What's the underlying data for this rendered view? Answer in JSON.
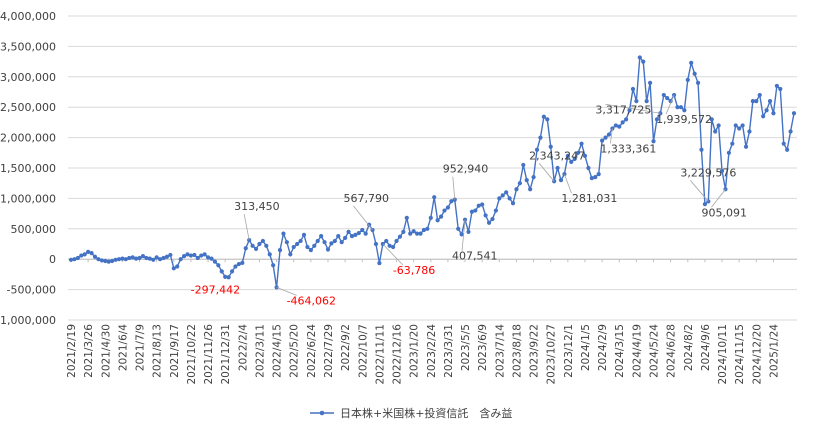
{
  "chart_data": {
    "type": "line",
    "title": "",
    "xlabel": "",
    "ylabel": "",
    "ylim": [
      -1000000,
      4000000
    ],
    "ytick_step": 500000,
    "y_ticks": [
      "4,000,000",
      "3,500,000",
      "3,000,000",
      "2,500,000",
      "2,000,000",
      "1,500,000",
      "1,000,000",
      "500,000",
      "0",
      "-500,000",
      "-1,000,000"
    ],
    "x_ticks": [
      "2021/2/19",
      "2021/3/26",
      "2021/4/30",
      "2021/6/4",
      "2021/7/9",
      "2021/8/13",
      "2021/9/17",
      "2021/10/22",
      "2021/11/26",
      "2021/12/31",
      "2022/2/4",
      "2022/3/11",
      "2022/4/15",
      "2022/5/20",
      "2022/6/24",
      "2022/7/29",
      "2022/9/2",
      "2022/10/7",
      "2022/11/11",
      "2022/12/16",
      "2023/1/20",
      "2023/2/24",
      "2023/3/31",
      "2023/5/5",
      "2023/6/9",
      "2023/7/14",
      "2023/8/18",
      "2023/9/22",
      "2023/10/27",
      "2023/12/1",
      "2024/1/5",
      "2024/2/9",
      "2024/3/15",
      "2024/4/19",
      "2024/5/24",
      "2024/6/28",
      "2024/8/2",
      "2024/9/6",
      "2024/10/11",
      "2024/11/15",
      "2024/12/20",
      "2025/1/24"
    ],
    "grid": true,
    "legend_position": "bottom",
    "series": [
      {
        "name": "日本株+米国株+投資信託　含み益",
        "color": "#4472C4",
        "values": [
          -10000,
          0,
          20000,
          60000,
          80000,
          120000,
          100000,
          40000,
          0,
          -20000,
          -30000,
          -40000,
          -30000,
          -10000,
          0,
          10000,
          0,
          20000,
          30000,
          10000,
          20000,
          50000,
          20000,
          10000,
          -10000,
          30000,
          0,
          20000,
          40000,
          70000,
          -150000,
          -120000,
          0,
          50000,
          80000,
          60000,
          70000,
          20000,
          60000,
          80000,
          30000,
          10000,
          -40000,
          -100000,
          -200000,
          -290000,
          -297442,
          -200000,
          -120000,
          -80000,
          -60000,
          180000,
          313450,
          220000,
          170000,
          250000,
          300000,
          220000,
          80000,
          -100000,
          -464062,
          150000,
          420000,
          280000,
          80000,
          200000,
          250000,
          300000,
          400000,
          200000,
          150000,
          220000,
          300000,
          380000,
          280000,
          160000,
          260000,
          300000,
          380000,
          280000,
          350000,
          450000,
          380000,
          400000,
          430000,
          480000,
          420000,
          567790,
          480000,
          250000,
          -63786,
          250000,
          300000,
          220000,
          200000,
          300000,
          370000,
          450000,
          680000,
          420000,
          460000,
          420000,
          420000,
          480000,
          500000,
          680000,
          1020000,
          640000,
          700000,
          800000,
          850000,
          952940,
          980000,
          500000,
          407541,
          650000,
          450000,
          780000,
          800000,
          880000,
          900000,
          720000,
          600000,
          660000,
          800000,
          1000000,
          1050000,
          1100000,
          1000000,
          920000,
          1150000,
          1250000,
          1550000,
          1300000,
          1150000,
          1350000,
          1800000,
          2000000,
          2343247,
          2300000,
          1850000,
          1281031,
          1500000,
          1300000,
          1400000,
          1700000,
          1600000,
          1650000,
          1750000,
          1900000,
          1700000,
          1500000,
          1333361,
          1350000,
          1400000,
          1950000,
          2000000,
          2050000,
          2150000,
          2200000,
          2180000,
          2250000,
          2300000,
          2450000,
          2800000,
          2600000,
          3317725,
          3250000,
          2600000,
          2900000,
          1939572,
          2300000,
          2400000,
          2700000,
          2650000,
          2600000,
          2700000,
          2500000,
          2500000,
          2450000,
          2950000,
          3229576,
          3050000,
          2900000,
          1800000,
          905091,
          950000,
          2300000,
          2100000,
          2200000,
          1450000,
          1150000,
          1750000,
          1900000,
          2200000,
          2150000,
          2200000,
          1850000,
          2100000,
          2600000,
          2600000,
          2700000,
          2350000,
          2450000,
          2600000,
          2400000,
          2850000,
          2800000,
          1900000,
          1800000,
          2100000,
          2400000
        ]
      }
    ],
    "annotations": [
      {
        "index": 46,
        "label": "-297,442",
        "color": "#FF0000",
        "dx": -38,
        "dy": 16,
        "leader": false
      },
      {
        "index": 52,
        "label": "313,450",
        "color": "#404040",
        "dx": -15,
        "dy": -30,
        "leader": true
      },
      {
        "index": 60,
        "label": "-464,062",
        "color": "#FF0000",
        "dx": 10,
        "dy": 17,
        "leader": true
      },
      {
        "index": 88,
        "label": "567,790",
        "color": "#404040",
        "dx": -29,
        "dy": -28,
        "leader": true
      },
      {
        "index": 91,
        "label": "-63,786",
        "color": "#FF0000",
        "dx": 10,
        "dy": 30,
        "leader": true
      },
      {
        "index": 112,
        "label": "952,940",
        "color": "#404040",
        "dx": -12,
        "dy": -27,
        "leader": true
      },
      {
        "index": 115,
        "label": "407,541",
        "color": "#404040",
        "dx": -13,
        "dy": 40,
        "leader": true
      },
      {
        "index": 141,
        "label": "2,343,247",
        "color": "#404040",
        "dx": -25,
        "dy": -22,
        "leader": true
      },
      {
        "index": 144,
        "label": "1,281,031",
        "color": "#404040",
        "dx": -3,
        "dy": 28,
        "leader": true
      },
      {
        "index": 158,
        "label": "1,333,361",
        "color": "#404040",
        "dx": -12,
        "dy": 24,
        "leader": true
      },
      {
        "index": 172,
        "label": "3,317,725",
        "color": "#404040",
        "dx": -65,
        "dy": 0,
        "leader": true
      },
      {
        "index": 176,
        "label": "1,939,572",
        "color": "#404040",
        "dx": -18,
        "dy": 28,
        "leader": true
      },
      {
        "index": 186,
        "label": "3,229,576",
        "color": "#404040",
        "dx": -28,
        "dy": -25,
        "leader": true
      },
      {
        "index": 191,
        "label": "905,091",
        "color": "#404040",
        "dx": -24,
        "dy": 27,
        "leader": true
      }
    ]
  }
}
